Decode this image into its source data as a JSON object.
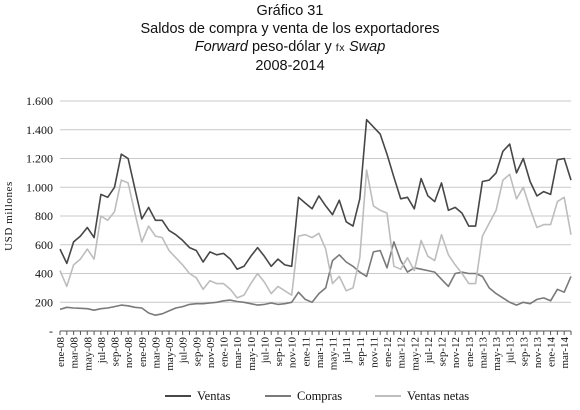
{
  "title": {
    "line1": "Gráfico 31",
    "line2": "Saldos de compra y venta de los exportadores",
    "line3_italic_a": "Forward",
    "line3_mid": " peso-dólar y ",
    "line3_smallcaps": "fx",
    "line3_italic_b": " Swap",
    "line4": "2008-2014"
  },
  "chart_data": {
    "type": "line",
    "title": "Saldos de compra y venta de los exportadores",
    "ylabel": "USD millones",
    "xlabel": "",
    "ylim": [
      0,
      1600
    ],
    "y_ticks": [
      {
        "value": 0,
        "label": "-"
      },
      {
        "value": 200,
        "label": "200"
      },
      {
        "value": 400,
        "label": "400"
      },
      {
        "value": 600,
        "label": "600"
      },
      {
        "value": 800,
        "label": "800"
      },
      {
        "value": 1000,
        "label": "1.000"
      },
      {
        "value": 1200,
        "label": "1.200"
      },
      {
        "value": 1400,
        "label": "1.400"
      },
      {
        "value": 1600,
        "label": "1.600"
      }
    ],
    "grid": "horizontal",
    "legend_position": "bottom",
    "x": [
      "ene-08",
      "feb-08",
      "mar-08",
      "abr-08",
      "may-08",
      "jun-08",
      "jul-08",
      "ago-08",
      "sep-08",
      "oct-08",
      "nov-08",
      "dic-08",
      "ene-09",
      "feb-09",
      "mar-09",
      "abr-09",
      "may-09",
      "jun-09",
      "jul-09",
      "ago-09",
      "sep-09",
      "oct-09",
      "nov-09",
      "dic-09",
      "ene-10",
      "feb-10",
      "mar-10",
      "abr-10",
      "may-10",
      "jun-10",
      "jul-10",
      "ago-10",
      "sep-10",
      "oct-10",
      "nov-10",
      "dic-10",
      "ene-11",
      "feb-11",
      "mar-11",
      "abr-11",
      "may-11",
      "jun-11",
      "jul-11",
      "ago-11",
      "sep-11",
      "oct-11",
      "nov-11",
      "dic-11",
      "ene-12",
      "feb-12",
      "mar-12",
      "abr-12",
      "may-12",
      "jun-12",
      "jul-12",
      "ago-12",
      "sep-12",
      "oct-12",
      "nov-12",
      "dic-12",
      "ene-13",
      "feb-13",
      "mar-13",
      "abr-13",
      "may-13",
      "jun-13",
      "jul-13",
      "ago-13",
      "sep-13",
      "oct-13",
      "nov-13",
      "dic-13",
      "ene-14",
      "feb-14",
      "mar-14",
      "abr-14"
    ],
    "x_tick_labels": [
      "ene-08",
      "mar-08",
      "may-08",
      "jul-08",
      "sep-08",
      "nov-08",
      "ene-09",
      "mar-09",
      "may-09",
      "jul-09",
      "sep-09",
      "nov-09",
      "ene-10",
      "mar-10",
      "may-10",
      "jul-10",
      "sep-10",
      "nov-10",
      "ene-11",
      "mar-11",
      "may-11",
      "jul-11",
      "sep-11",
      "nov-11",
      "ene-12",
      "mar-12",
      "may-12",
      "jul-12",
      "sep-12",
      "nov-12",
      "ene-13",
      "mar-13",
      "may-13",
      "jul-13",
      "sep-13",
      "nov-13",
      "ene-14",
      "mar-14"
    ],
    "series": [
      {
        "name": "Ventas",
        "color": "#474747",
        "values": [
          570,
          470,
          620,
          660,
          720,
          650,
          950,
          930,
          1000,
          1230,
          1200,
          990,
          780,
          860,
          770,
          770,
          700,
          670,
          630,
          580,
          560,
          480,
          550,
          530,
          540,
          500,
          430,
          450,
          520,
          580,
          520,
          450,
          500,
          460,
          450,
          930,
          890,
          850,
          940,
          870,
          810,
          910,
          760,
          730,
          920,
          1470,
          1420,
          1370,
          1230,
          1070,
          920,
          930,
          850,
          1060,
          940,
          900,
          1030,
          840,
          860,
          820,
          730,
          730,
          1040,
          1050,
          1100,
          1250,
          1300,
          1100,
          1200,
          1040,
          940,
          970,
          950,
          1190,
          1200,
          1050
        ]
      },
      {
        "name": "Compras",
        "color": "#7a7a7a",
        "values": [
          150,
          165,
          160,
          158,
          155,
          145,
          155,
          160,
          170,
          180,
          175,
          165,
          160,
          125,
          110,
          120,
          140,
          160,
          170,
          185,
          190,
          190,
          195,
          200,
          210,
          215,
          205,
          200,
          190,
          180,
          185,
          195,
          185,
          190,
          200,
          270,
          220,
          200,
          260,
          300,
          490,
          530,
          480,
          450,
          410,
          380,
          550,
          560,
          440,
          620,
          490,
          410,
          440,
          430,
          420,
          410,
          360,
          310,
          400,
          410,
          400,
          400,
          380,
          300,
          260,
          230,
          200,
          180,
          200,
          190,
          220,
          230,
          210,
          290,
          270,
          380
        ]
      },
      {
        "name": "Ventas netas",
        "color": "#bdbdbd",
        "values": [
          420,
          310,
          460,
          500,
          570,
          500,
          800,
          770,
          830,
          1050,
          1030,
          820,
          620,
          730,
          660,
          650,
          560,
          510,
          460,
          400,
          370,
          290,
          350,
          330,
          330,
          290,
          230,
          250,
          330,
          400,
          340,
          260,
          310,
          280,
          250,
          660,
          670,
          650,
          680,
          570,
          330,
          380,
          280,
          300,
          510,
          1120,
          870,
          840,
          820,
          450,
          430,
          510,
          420,
          630,
          520,
          490,
          670,
          530,
          460,
          400,
          330,
          330,
          660,
          750,
          840,
          1050,
          1090,
          920,
          1000,
          850,
          720,
          740,
          740,
          900,
          930,
          670
        ]
      }
    ]
  }
}
